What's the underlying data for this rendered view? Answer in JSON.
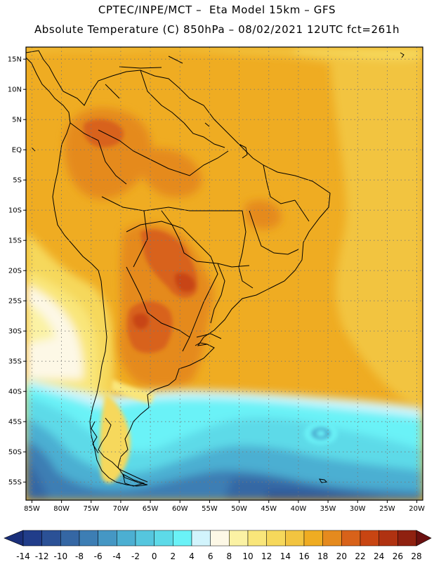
{
  "title": {
    "line1": "CPTEC/INPE/MCT –  Eta Model 15km – GFS",
    "line2": "Absolute Temperature (C) 850hPa – 08/02/2021 12UTC fct=261h"
  },
  "map": {
    "lon_range": [
      -86,
      -19
    ],
    "lat_range": [
      -58,
      17
    ],
    "lat_labels": [
      {
        "lat": 15,
        "label": "15N"
      },
      {
        "lat": 10,
        "label": "10N"
      },
      {
        "lat": 5,
        "label": "5N"
      },
      {
        "lat": 0,
        "label": "EQ"
      },
      {
        "lat": -5,
        "label": "5S"
      },
      {
        "lat": -10,
        "label": "10S"
      },
      {
        "lat": -15,
        "label": "15S"
      },
      {
        "lat": -20,
        "label": "20S"
      },
      {
        "lat": -25,
        "label": "25S"
      },
      {
        "lat": -30,
        "label": "30S"
      },
      {
        "lat": -35,
        "label": "35S"
      },
      {
        "lat": -40,
        "label": "40S"
      },
      {
        "lat": -45,
        "label": "45S"
      },
      {
        "lat": -50,
        "label": "50S"
      },
      {
        "lat": -55,
        "label": "55S"
      }
    ],
    "lon_labels": [
      {
        "lon": -85,
        "label": "85W"
      },
      {
        "lon": -80,
        "label": "80W"
      },
      {
        "lon": -75,
        "label": "75W"
      },
      {
        "lon": -70,
        "label": "70W"
      },
      {
        "lon": -65,
        "label": "65W"
      },
      {
        "lon": -60,
        "label": "60W"
      },
      {
        "lon": -55,
        "label": "55W"
      },
      {
        "lon": -50,
        "label": "50W"
      },
      {
        "lon": -45,
        "label": "45W"
      },
      {
        "lon": -40,
        "label": "40W"
      },
      {
        "lon": -35,
        "label": "35W"
      },
      {
        "lon": -30,
        "label": "30W"
      },
      {
        "lon": -25,
        "label": "25W"
      },
      {
        "lon": -20,
        "label": "20W"
      }
    ]
  },
  "colorbar": {
    "labels": [
      "-14",
      "-12",
      "-10",
      "-8",
      "-6",
      "-4",
      "-2",
      "0",
      "2",
      "4",
      "6",
      "8",
      "10",
      "12",
      "14",
      "16",
      "18",
      "20",
      "22",
      "24",
      "26",
      "28"
    ],
    "under_color": "#1a2f7a",
    "over_color": "#6b1010",
    "colors": [
      "#213d8a",
      "#2b5196",
      "#3567a4",
      "#3d7eb4",
      "#4597c4",
      "#4cafd2",
      "#55c6de",
      "#5ddae8",
      "#6af2f7",
      "#d2f4fc",
      "#fdf8e6",
      "#fbf2a4",
      "#f9e67a",
      "#f6d85b",
      "#f2c440",
      "#efac22",
      "#e58a1e",
      "#d8621a",
      "#c84512",
      "#b03211",
      "#8f2110"
    ]
  }
}
